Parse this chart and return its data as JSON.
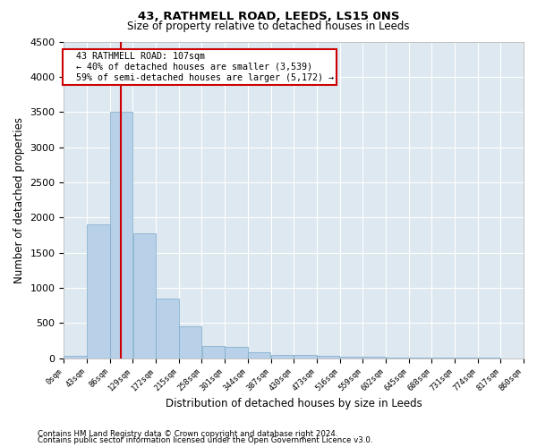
{
  "title": "43, RATHMELL ROAD, LEEDS, LS15 0NS",
  "subtitle": "Size of property relative to detached houses in Leeds",
  "xlabel": "Distribution of detached houses by size in Leeds",
  "ylabel": "Number of detached properties",
  "footnote1": "Contains HM Land Registry data © Crown copyright and database right 2024.",
  "footnote2": "Contains public sector information licensed under the Open Government Licence v3.0.",
  "annotation_line1": "43 RATHMELL ROAD: 107sqm",
  "annotation_line2": "← 40% of detached houses are smaller (3,539)",
  "annotation_line3": "59% of semi-detached houses are larger (5,172) →",
  "bar_color": "#b8d0e8",
  "bar_edge_color": "#7aaac8",
  "vline_color": "#cc0000",
  "annotation_box_edgecolor": "#cc0000",
  "annotation_box_facecolor": "#ffffff",
  "background_color": "#dde8f0",
  "ylim": [
    0,
    4500
  ],
  "yticks": [
    0,
    500,
    1000,
    1500,
    2000,
    2500,
    3000,
    3500,
    4000,
    4500
  ],
  "bin_edges": [
    0,
    43,
    86,
    129,
    172,
    215,
    258,
    301,
    344,
    387,
    430,
    473,
    516,
    559,
    602,
    645,
    688,
    731,
    774,
    817,
    860
  ],
  "bar_heights": [
    28,
    1900,
    3500,
    1780,
    840,
    450,
    175,
    160,
    90,
    50,
    42,
    32,
    22,
    14,
    10,
    7,
    5,
    3,
    2,
    1
  ],
  "property_size": 107,
  "property_bin_index": 2
}
